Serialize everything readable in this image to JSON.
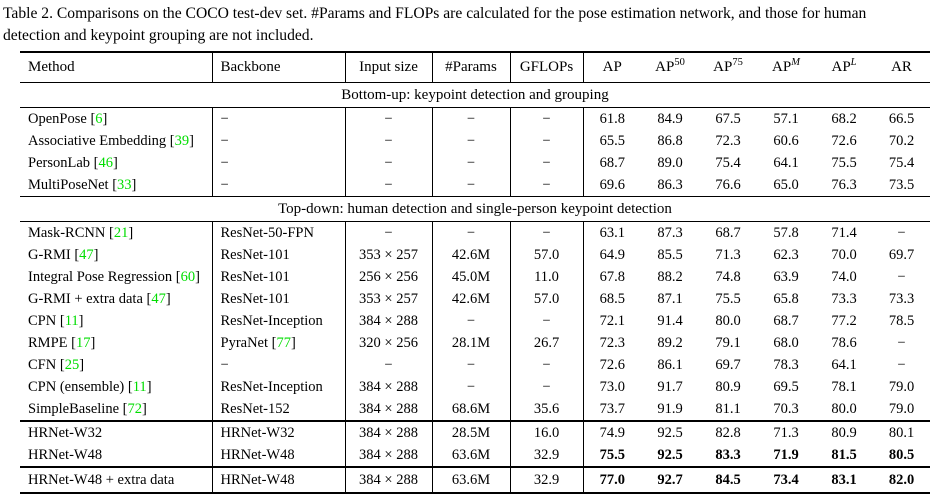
{
  "colors": {
    "citation": "#00dd00",
    "text": "#000000",
    "background": "#ffffff",
    "rule": "#000000"
  },
  "caption": {
    "lines": [
      "Table 2. Comparisons on the COCO test-dev set. #Params and FLOPs are calculated for the pose estimation network, and those for human",
      "detection and keypoint grouping are not included."
    ]
  },
  "table": {
    "columns": [
      {
        "id": "method",
        "label": "Method"
      },
      {
        "id": "backbone",
        "label": "Backbone"
      },
      {
        "id": "input-size",
        "label": "Input size"
      },
      {
        "id": "params",
        "label": "#Params"
      },
      {
        "id": "gflops",
        "label": "GFLOPs"
      },
      {
        "id": "ap",
        "label": "AP"
      },
      {
        "id": "ap50",
        "label": "AP",
        "sup": "50"
      },
      {
        "id": "ap75",
        "label": "AP",
        "sup": "75"
      },
      {
        "id": "apM",
        "label": "AP",
        "sup": "M",
        "sup_italic": true
      },
      {
        "id": "apL",
        "label": "AP",
        "sup": "L",
        "sup_italic": true
      },
      {
        "id": "ar",
        "label": "AR"
      }
    ],
    "rows": [
      {
        "type": "section",
        "label": "Bottom-up: keypoint detection and grouping"
      },
      {
        "type": "data",
        "method": "OpenPose",
        "cite": "6",
        "backbone": "−",
        "backbone_cite": null,
        "input": "−",
        "params": "−",
        "flops": "−",
        "metrics": [
          "61.8",
          "84.9",
          "67.5",
          "57.1",
          "68.2",
          "66.5"
        ]
      },
      {
        "type": "data",
        "method": "Associative Embedding",
        "cite": "39",
        "backbone": "−",
        "backbone_cite": null,
        "input": "−",
        "params": "−",
        "flops": "−",
        "metrics": [
          "65.5",
          "86.8",
          "72.3",
          "60.6",
          "72.6",
          "70.2"
        ]
      },
      {
        "type": "data",
        "method": "PersonLab",
        "cite": "46",
        "backbone": "−",
        "backbone_cite": null,
        "input": "−",
        "params": "−",
        "flops": "−",
        "metrics": [
          "68.7",
          "89.0",
          "75.4",
          "64.1",
          "75.5",
          "75.4"
        ]
      },
      {
        "type": "data",
        "method": "MultiPoseNet",
        "cite": "33",
        "backbone": "−",
        "backbone_cite": null,
        "input": "−",
        "params": "−",
        "flops": "−",
        "metrics": [
          "69.6",
          "86.3",
          "76.6",
          "65.0",
          "76.3",
          "73.5"
        ]
      },
      {
        "type": "section",
        "label": "Top-down: human detection and single-person keypoint detection"
      },
      {
        "type": "data",
        "method": "Mask-RCNN",
        "cite": "21",
        "backbone": "ResNet-50-FPN",
        "backbone_cite": null,
        "input": "−",
        "params": "−",
        "flops": "−",
        "metrics": [
          "63.1",
          "87.3",
          "68.7",
          "57.8",
          "71.4",
          "−"
        ]
      },
      {
        "type": "data",
        "method": "G-RMI",
        "cite": "47",
        "backbone": "ResNet-101",
        "backbone_cite": null,
        "input": "353 × 257",
        "params": "42.6M",
        "flops": "57.0",
        "metrics": [
          "64.9",
          "85.5",
          "71.3",
          "62.3",
          "70.0",
          "69.7"
        ]
      },
      {
        "type": "data",
        "method": "Integral Pose Regression",
        "cite": "60",
        "backbone": "ResNet-101",
        "backbone_cite": null,
        "input": "256 × 256",
        "params": "45.0M",
        "flops": "11.0",
        "metrics": [
          "67.8",
          "88.2",
          "74.8",
          "63.9",
          "74.0",
          "−"
        ]
      },
      {
        "type": "data",
        "method": "G-RMI + extra data",
        "cite": "47",
        "backbone": "ResNet-101",
        "backbone_cite": null,
        "input": "353 × 257",
        "params": "42.6M",
        "flops": "57.0",
        "metrics": [
          "68.5",
          "87.1",
          "75.5",
          "65.8",
          "73.3",
          "73.3"
        ]
      },
      {
        "type": "data",
        "method": "CPN",
        "cite": "11",
        "backbone": "ResNet-Inception",
        "backbone_cite": null,
        "input": "384 × 288",
        "params": "−",
        "flops": "−",
        "metrics": [
          "72.1",
          "91.4",
          "80.0",
          "68.7",
          "77.2",
          "78.5"
        ]
      },
      {
        "type": "data",
        "method": "RMPE",
        "cite": "17",
        "backbone": "PyraNet",
        "backbone_cite": "77",
        "input": "320 × 256",
        "params": "28.1M",
        "flops": "26.7",
        "metrics": [
          "72.3",
          "89.2",
          "79.1",
          "68.0",
          "78.6",
          "−"
        ]
      },
      {
        "type": "data",
        "method": "CFN",
        "cite": "25",
        "backbone": "−",
        "backbone_cite": null,
        "input": "−",
        "params": "−",
        "flops": "−",
        "metrics": [
          "72.6",
          "86.1",
          "69.7",
          "78.3",
          "64.1",
          "−"
        ]
      },
      {
        "type": "data",
        "method": "CPN (ensemble)",
        "cite": "11",
        "backbone": "ResNet-Inception",
        "backbone_cite": null,
        "input": "384 × 288",
        "params": "−",
        "flops": "−",
        "metrics": [
          "73.0",
          "91.7",
          "80.9",
          "69.5",
          "78.1",
          "79.0"
        ]
      },
      {
        "type": "data",
        "method": "SimpleBaseline",
        "cite": "72",
        "backbone": "ResNet-152",
        "backbone_cite": null,
        "input": "384 × 288",
        "params": "68.6M",
        "flops": "35.6",
        "metrics": [
          "73.7",
          "91.9",
          "81.1",
          "70.3",
          "80.0",
          "79.0"
        ]
      },
      {
        "type": "data",
        "method": "HRNet-W32",
        "cite": null,
        "backbone": "HRNet-W32",
        "backbone_cite": null,
        "input": "384 × 288",
        "params": "28.5M",
        "flops": "16.0",
        "metrics": [
          "74.9",
          "92.5",
          "82.8",
          "71.3",
          "80.9",
          "80.1"
        ],
        "sep_above": true
      },
      {
        "type": "data",
        "method": "HRNet-W48",
        "cite": null,
        "backbone": "HRNet-W48",
        "backbone_cite": null,
        "input": "384 × 288",
        "params": "63.6M",
        "flops": "32.9",
        "metrics": [
          "75.5",
          "92.5",
          "83.3",
          "71.9",
          "81.5",
          "80.5"
        ],
        "bold_metrics": true
      },
      {
        "type": "data",
        "method": "HRNet-W48 + extra data",
        "cite": null,
        "backbone": "HRNet-W48",
        "backbone_cite": null,
        "input": "384 × 288",
        "params": "63.6M",
        "flops": "32.9",
        "metrics": [
          "77.0",
          "92.7",
          "84.5",
          "73.4",
          "83.1",
          "82.0"
        ],
        "bold_metrics": true,
        "sep_above": true
      }
    ]
  }
}
